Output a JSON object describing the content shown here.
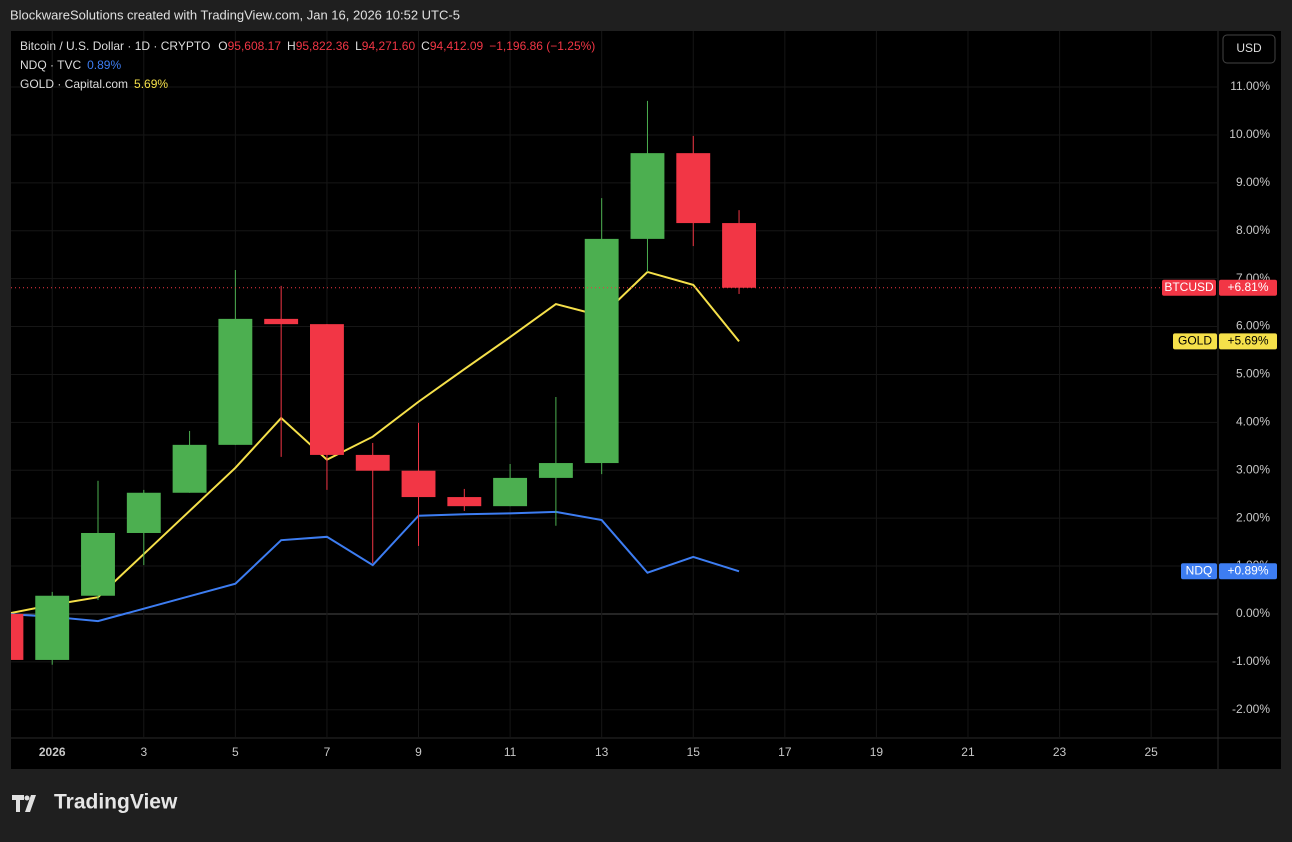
{
  "header": {
    "title": "BlockwareSolutions created with TradingView.com, Jan 16, 2026 10:52 UTC-5"
  },
  "footer": {
    "brand": "TradingView"
  },
  "currency": "USD",
  "chart_data": {
    "type": "candlestick",
    "legend": {
      "btc": {
        "label": "Bitcoin / U.S. Dollar · 1D · CRYPTO",
        "ohlc": [
          {
            "key": "O",
            "value": "95,608.17"
          },
          {
            "key": "H",
            "value": "95,822.36"
          },
          {
            "key": "L",
            "value": "94,271.60"
          },
          {
            "key": "C",
            "value": "94,412.09"
          }
        ],
        "change": "−1,196.86 (−1.25%)"
      },
      "lines": [
        {
          "label": "NDQ · TVC",
          "value": "0.89%",
          "color": "#3d7df2"
        },
        {
          "label": "GOLD · Capital.com",
          "value": "5.69%",
          "color": "#f5e04a"
        }
      ]
    },
    "x": [
      0,
      1,
      2,
      3,
      4,
      5,
      6,
      7,
      8,
      9,
      10,
      11,
      12,
      13,
      14,
      15,
      16
    ],
    "xlim": [
      0.1,
      26.46
    ],
    "xticks": [
      {
        "value": 1,
        "label": "2026"
      },
      3,
      5,
      7,
      9,
      11,
      13,
      15,
      17,
      19,
      21,
      23,
      25
    ],
    "ylim": [
      -2.59,
      12.17
    ],
    "yticks": [
      {
        "value": 11,
        "label": "11.00%"
      },
      {
        "value": 10,
        "label": "10.00%"
      },
      {
        "value": 9,
        "label": "9.00%"
      },
      {
        "value": 8,
        "label": "8.00%"
      },
      {
        "value": 7,
        "label": "7.00%"
      },
      {
        "value": 6,
        "label": "6.00%"
      },
      {
        "value": 5,
        "label": "5.00%"
      },
      {
        "value": 4,
        "label": "4.00%"
      },
      {
        "value": 3,
        "label": "3.00%"
      },
      {
        "value": 2,
        "label": "2.00%"
      },
      {
        "value": 1,
        "label": "1.00%"
      },
      {
        "value": 0,
        "label": "0.00%"
      },
      {
        "value": -1,
        "label": "-1.00%"
      },
      {
        "value": -2,
        "label": "-2.00%"
      }
    ],
    "grid": true,
    "candles": {
      "name": "BTCUSD",
      "last_label": "+6.81%",
      "up_color": "#4caf50",
      "down_color": "#f23645",
      "open": [
        0,
        -0.96,
        0.38,
        1.69,
        2.53,
        3.53,
        6.16,
        6.05,
        3.32,
        2.99,
        2.44,
        2.25,
        2.84,
        3.15,
        7.83,
        9.62,
        8.16
      ],
      "high": [
        0,
        0.46,
        2.78,
        2.59,
        3.82,
        7.18,
        6.85,
        6.05,
        3.57,
        3.99,
        2.61,
        3.13,
        4.53,
        8.68,
        10.71,
        9.98,
        8.43
      ],
      "low": [
        -1,
        -1.06,
        0.29,
        1.02,
        2.53,
        3.53,
        3.28,
        2.59,
        1.06,
        1.42,
        2.15,
        2.25,
        1.84,
        2.92,
        7.14,
        7.68,
        6.68
      ],
      "close": [
        -0.96,
        0.38,
        1.69,
        2.53,
        3.53,
        6.16,
        6.05,
        3.32,
        2.99,
        2.44,
        2.25,
        2.84,
        3.15,
        7.83,
        9.62,
        8.16,
        6.81
      ]
    },
    "series": [
      {
        "name": "GOLD",
        "last_label": "+5.69%",
        "color": "#f5e04a",
        "text_color": "#000000",
        "values": [
          0,
          0.19,
          0.35,
          1.25,
          2.15,
          3.05,
          4.09,
          3.22,
          3.7,
          4.43,
          5.11,
          5.78,
          6.47,
          6.22,
          7.14,
          6.87,
          5.69
        ]
      },
      {
        "name": "NDQ",
        "last_label": "+0.89%",
        "color": "#3d7df2",
        "text_color": "#ffffff",
        "values": [
          0,
          -0.06,
          -0.15,
          0.11,
          0.37,
          0.63,
          1.54,
          1.61,
          1.02,
          2.05,
          2.08,
          2.1,
          2.13,
          1.96,
          0.86,
          1.19,
          0.89
        ]
      }
    ]
  }
}
